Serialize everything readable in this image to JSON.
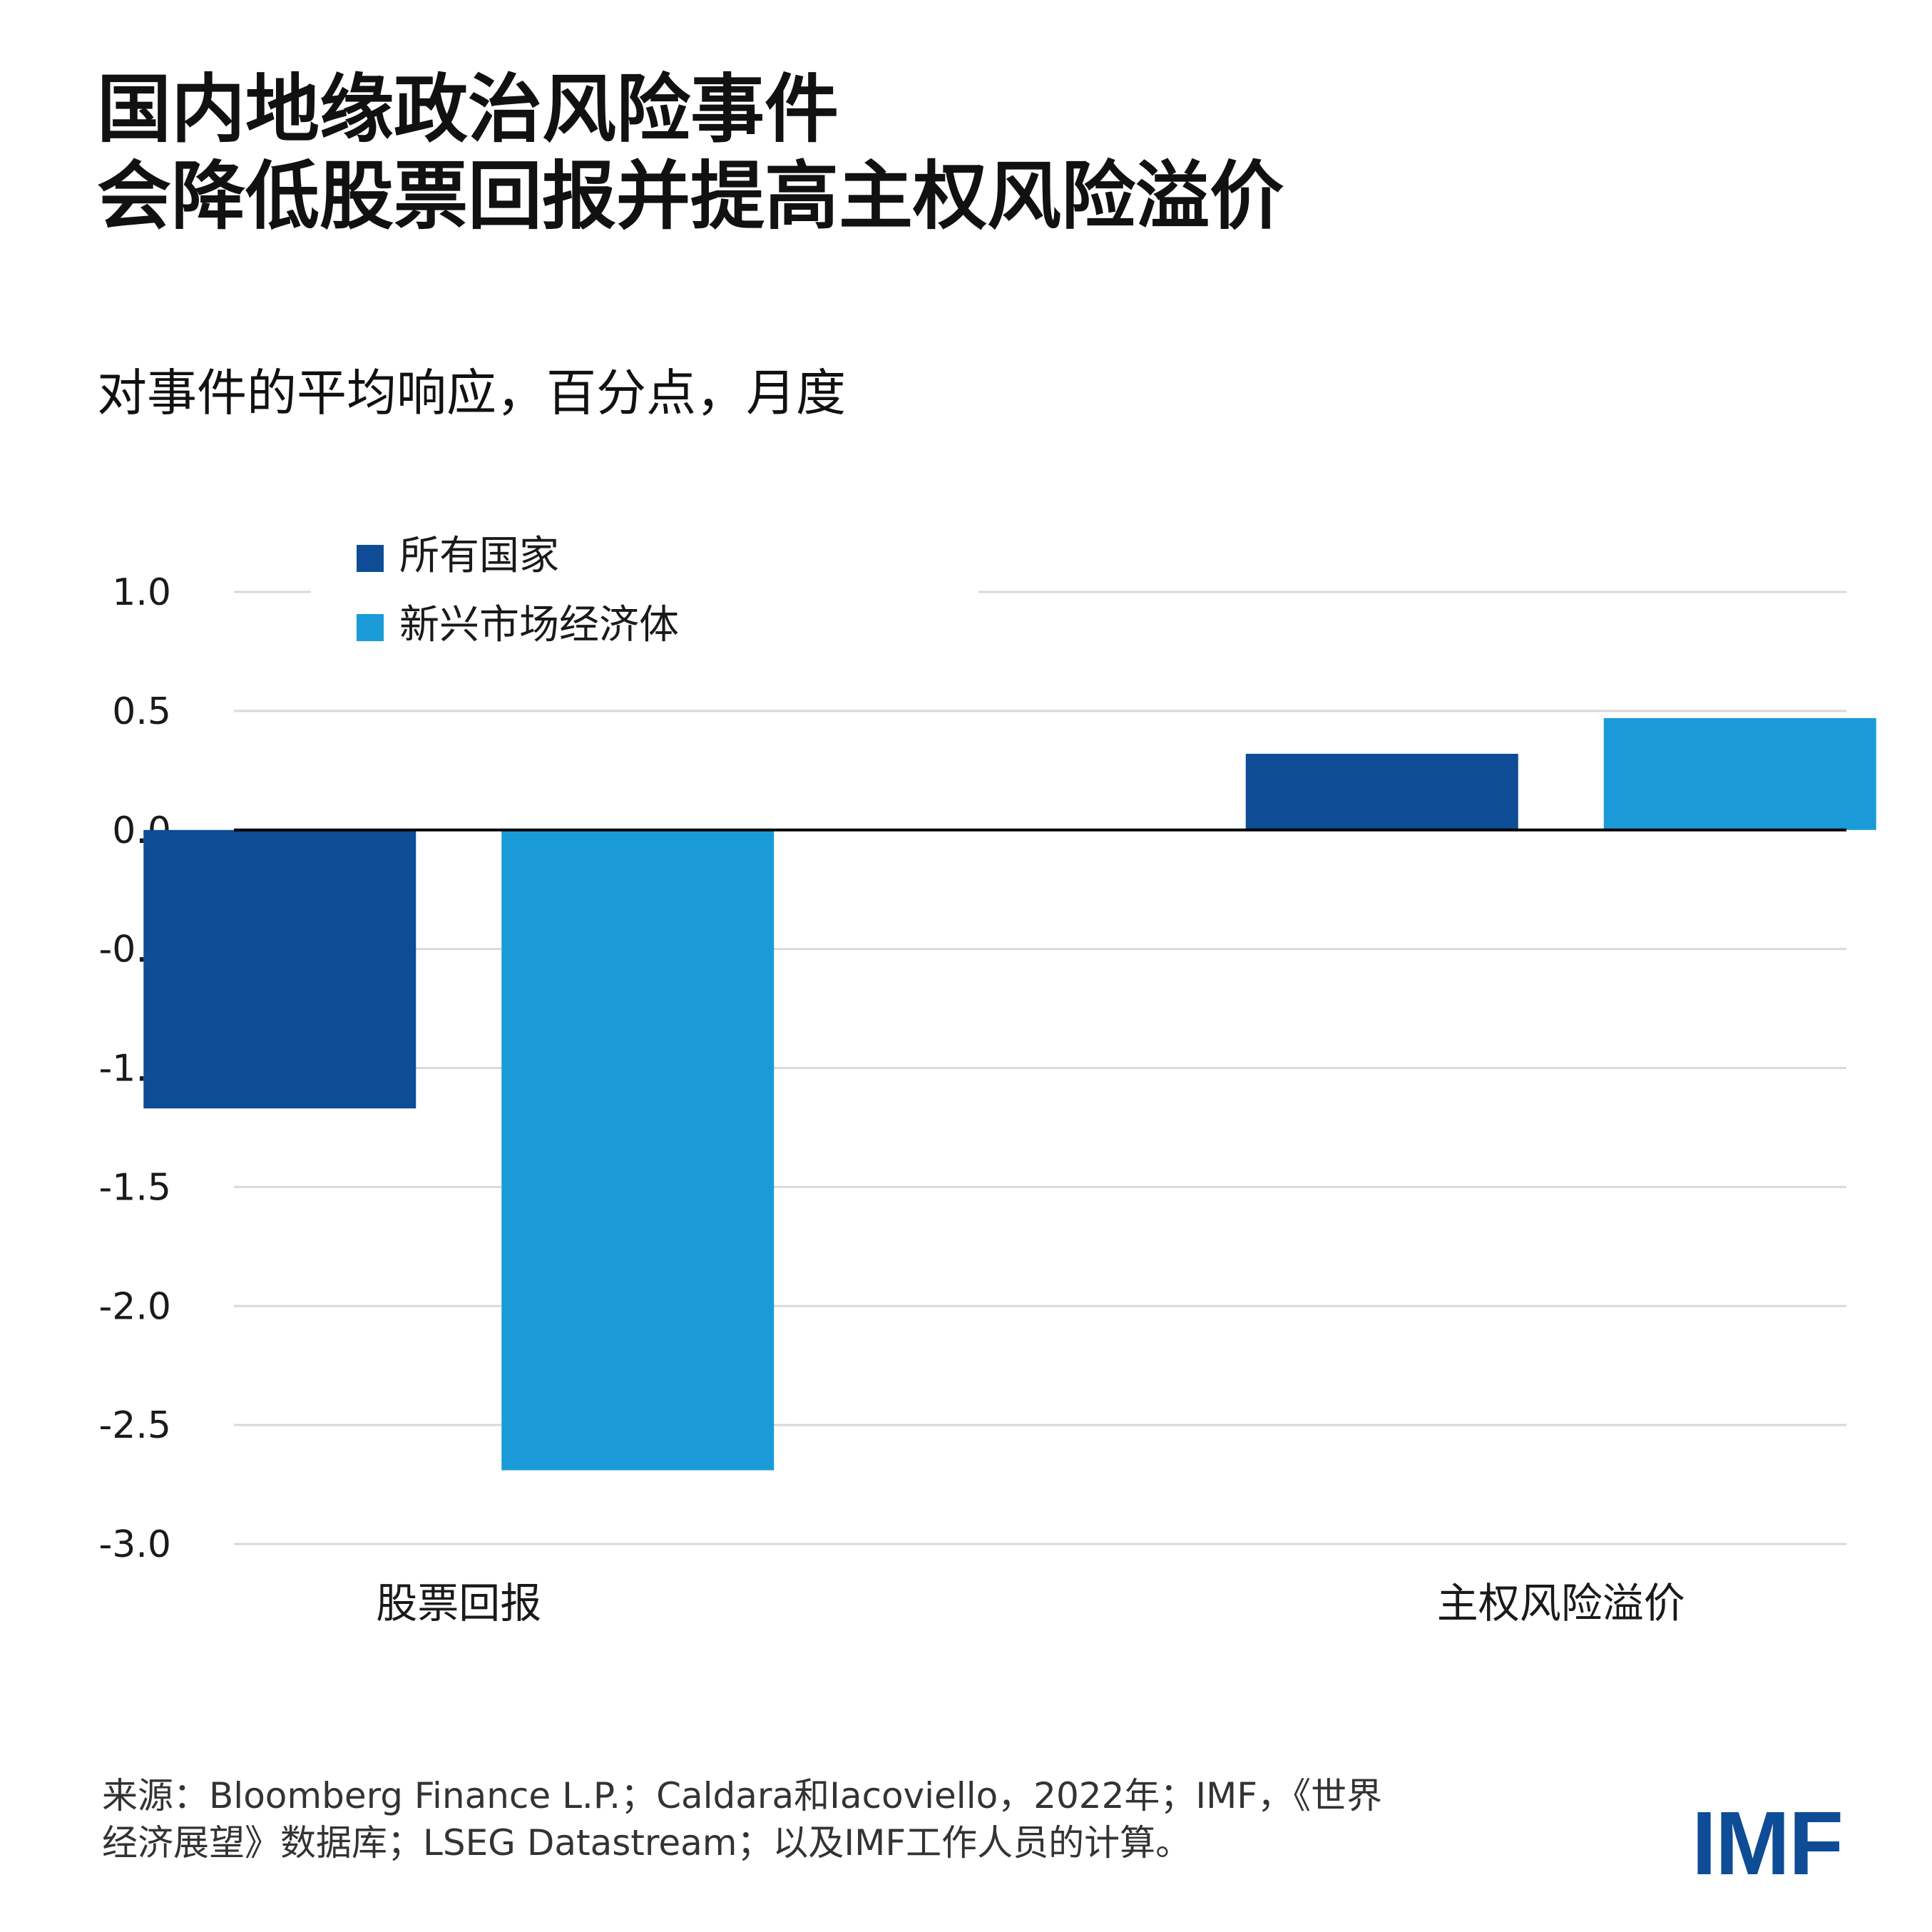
{
  "title_lines": [
    "国内地缘政治风险事件",
    "会降低股票回报并提高主权风险溢价"
  ],
  "subtitle": "对事件的平均响应，百分点，月度",
  "source": [
    "来源：Bloomberg Finance L.P.；Caldara和Iacoviello，2022年；IMF，《世界",
    "经济展望》数据库；LSEG Datastream；以及IMF工作人员的计算。"
  ],
  "logo": "IMF",
  "chart_data": {
    "type": "bar",
    "categories": [
      "股票回报",
      "主权风险溢价"
    ],
    "series": [
      {
        "name": "所有国家",
        "color": "#0e4c96",
        "values": [
          -1.17,
          0.32
        ]
      },
      {
        "name": "新兴市场经济体",
        "color": "#1a9bd7",
        "values": [
          -2.69,
          0.47
        ]
      }
    ],
    "ylim": [
      -3.0,
      1.0
    ],
    "yticks": [
      "1.0",
      "0.5",
      "0.0",
      "-0.5",
      "-1.0",
      "-1.5",
      "-2.0",
      "-2.5",
      "-3.0"
    ],
    "ytick_values": [
      1.0,
      0.5,
      0.0,
      -0.5,
      -1.0,
      -1.5,
      -2.0,
      -2.5,
      -3.0
    ],
    "grid": true,
    "legend_position": "top-left"
  }
}
